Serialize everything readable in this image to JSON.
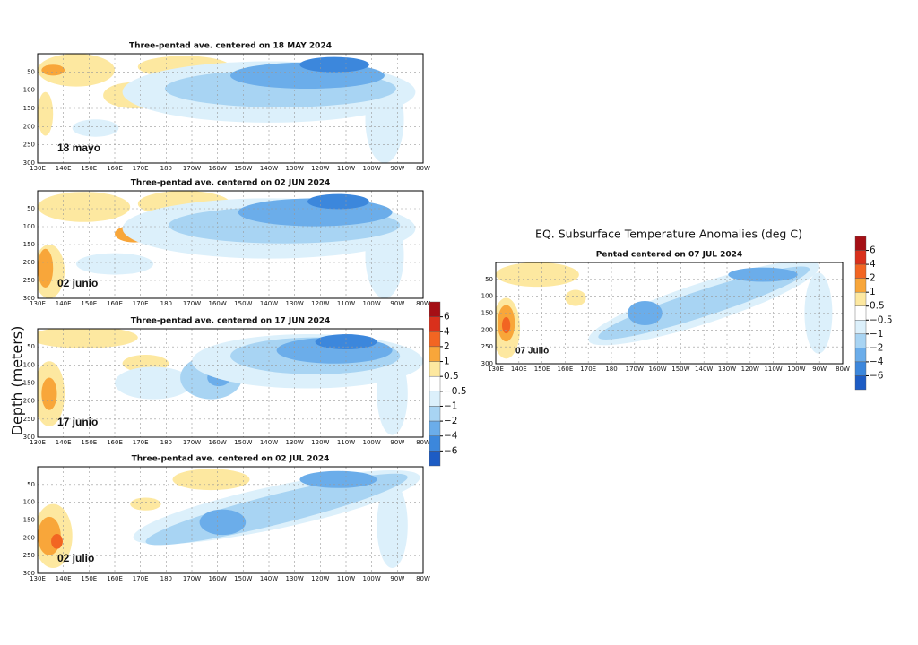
{
  "chart_data": [
    {
      "type": "contour",
      "title": "Three-pentad ave. centered on 18 MAY 2024",
      "label": "18 mayo",
      "xlim": [
        130,
        280
      ],
      "ylim": [
        300,
        0
      ],
      "grid": true,
      "xticks": [
        {
          "value": 130,
          "label": "130E"
        },
        {
          "value": 140,
          "label": "140E"
        },
        {
          "value": 150,
          "label": "150E"
        },
        {
          "value": 160,
          "label": "160E"
        },
        {
          "value": 170,
          "label": "170E"
        },
        180,
        {
          "value": 190,
          "label": "170W"
        },
        {
          "value": 200,
          "label": "160W"
        },
        {
          "value": 210,
          "label": "150W"
        },
        {
          "value": 220,
          "label": "140W"
        },
        {
          "value": 230,
          "label": "130W"
        },
        {
          "value": 240,
          "label": "120W"
        },
        {
          "value": 250,
          "label": "110W"
        },
        {
          "value": 260,
          "label": "100W"
        },
        {
          "value": 270,
          "label": "90W"
        },
        {
          "value": 280,
          "label": "80W"
        }
      ],
      "yticks": [
        50,
        100,
        150,
        200,
        250,
        300
      ]
    },
    {
      "type": "contour",
      "title": "Three-pentad ave. centered on 02 JUN 2024",
      "label": "02 junio",
      "xlim": [
        130,
        280
      ],
      "ylim": [
        300,
        0
      ],
      "grid": true,
      "xticks": [
        {
          "value": 130,
          "label": "130E"
        },
        {
          "value": 140,
          "label": "140E"
        },
        {
          "value": 150,
          "label": "150E"
        },
        {
          "value": 160,
          "label": "160E"
        },
        {
          "value": 170,
          "label": "170E"
        },
        180,
        {
          "value": 190,
          "label": "170W"
        },
        {
          "value": 200,
          "label": "160W"
        },
        {
          "value": 210,
          "label": "150W"
        },
        {
          "value": 220,
          "label": "140W"
        },
        {
          "value": 230,
          "label": "130W"
        },
        {
          "value": 240,
          "label": "120W"
        },
        {
          "value": 250,
          "label": "110W"
        },
        {
          "value": 260,
          "label": "100W"
        },
        {
          "value": 270,
          "label": "90W"
        },
        {
          "value": 280,
          "label": "80W"
        }
      ],
      "yticks": [
        50,
        100,
        150,
        200,
        250,
        300
      ]
    },
    {
      "type": "contour",
      "title": "Three-pentad ave. centered on 17 JUN 2024",
      "label": "17 junio",
      "ylabel": "Depth (meters)",
      "xlim": [
        130,
        280
      ],
      "ylim": [
        300,
        0
      ],
      "grid": true,
      "xticks": [
        {
          "value": 130,
          "label": "130E"
        },
        {
          "value": 140,
          "label": "140E"
        },
        {
          "value": 150,
          "label": "150E"
        },
        {
          "value": 160,
          "label": "160E"
        },
        {
          "value": 170,
          "label": "170E"
        },
        180,
        {
          "value": 190,
          "label": "170W"
        },
        {
          "value": 200,
          "label": "160W"
        },
        {
          "value": 210,
          "label": "150W"
        },
        {
          "value": 220,
          "label": "140W"
        },
        {
          "value": 230,
          "label": "130W"
        },
        {
          "value": 240,
          "label": "120W"
        },
        {
          "value": 250,
          "label": "110W"
        },
        {
          "value": 260,
          "label": "100W"
        },
        {
          "value": 270,
          "label": "90W"
        },
        {
          "value": 280,
          "label": "80W"
        }
      ],
      "yticks": [
        50,
        100,
        150,
        200,
        250,
        300
      ],
      "colorbar": {
        "levels": [
          6,
          4,
          2,
          1,
          0.5,
          {
            "value": -0.5,
            "label": "−0.5"
          },
          {
            "value": -1,
            "label": "−1"
          },
          {
            "value": -2,
            "label": "−2"
          },
          {
            "value": -4,
            "label": "−4"
          },
          {
            "value": -6,
            "label": "−6"
          }
        ],
        "colors": [
          "#a50f15",
          "#d9301c",
          "#f26522",
          "#f8a63a",
          "#fde8a0",
          "#ffffff",
          "#dcf0fb",
          "#a8d4f3",
          "#6badea",
          "#3c87dc",
          "#1d5cc4"
        ]
      }
    },
    {
      "type": "contour",
      "title": "Three-pentad ave. centered on 02 JUL 2024",
      "label": "02 julio",
      "xlim": [
        130,
        280
      ],
      "ylim": [
        300,
        0
      ],
      "grid": true,
      "xticks": [
        {
          "value": 130,
          "label": "130E"
        },
        {
          "value": 140,
          "label": "140E"
        },
        {
          "value": 150,
          "label": "150E"
        },
        {
          "value": 160,
          "label": "160E"
        },
        {
          "value": 170,
          "label": "170E"
        },
        180,
        {
          "value": 190,
          "label": "170W"
        },
        {
          "value": 200,
          "label": "160W"
        },
        {
          "value": 210,
          "label": "150W"
        },
        {
          "value": 220,
          "label": "140W"
        },
        {
          "value": 230,
          "label": "130W"
        },
        {
          "value": 240,
          "label": "120W"
        },
        {
          "value": 250,
          "label": "110W"
        },
        {
          "value": 260,
          "label": "100W"
        },
        {
          "value": 270,
          "label": "90W"
        },
        {
          "value": 280,
          "label": "80W"
        }
      ],
      "yticks": [
        50,
        100,
        150,
        200,
        250,
        300
      ]
    },
    {
      "type": "contour",
      "suptitle": "EQ. Subsurface Temperature Anomalies (deg C)",
      "title": "Pentad centered on 07 JUL 2024",
      "label": "07 Julio",
      "xlim": [
        130,
        280
      ],
      "ylim": [
        300,
        0
      ],
      "grid": true,
      "xticks": [
        {
          "value": 130,
          "label": "130E"
        },
        {
          "value": 140,
          "label": "140E"
        },
        {
          "value": 150,
          "label": "150E"
        },
        {
          "value": 160,
          "label": "160E"
        },
        {
          "value": 170,
          "label": "170E"
        },
        180,
        {
          "value": 190,
          "label": "170W"
        },
        {
          "value": 200,
          "label": "160W"
        },
        {
          "value": 210,
          "label": "150W"
        },
        {
          "value": 220,
          "label": "140W"
        },
        {
          "value": 230,
          "label": "130W"
        },
        {
          "value": 240,
          "label": "120W"
        },
        {
          "value": 250,
          "label": "110W"
        },
        {
          "value": 260,
          "label": "100W"
        },
        {
          "value": 270,
          "label": "90W"
        },
        {
          "value": 280,
          "label": "80W"
        }
      ],
      "yticks": [
        50,
        100,
        150,
        200,
        250,
        300
      ],
      "colorbar": {
        "levels": [
          6,
          4,
          2,
          1,
          0.5,
          {
            "value": -0.5,
            "label": "−0.5"
          },
          {
            "value": -1,
            "label": "−1"
          },
          {
            "value": -2,
            "label": "−2"
          },
          {
            "value": -4,
            "label": "−4"
          },
          {
            "value": -6,
            "label": "−6"
          }
        ],
        "colors": [
          "#a50f15",
          "#d9301c",
          "#f26522",
          "#f8a63a",
          "#fde8a0",
          "#ffffff",
          "#dcf0fb",
          "#a8d4f3",
          "#6badea",
          "#3c87dc",
          "#1d5cc4"
        ]
      }
    }
  ]
}
